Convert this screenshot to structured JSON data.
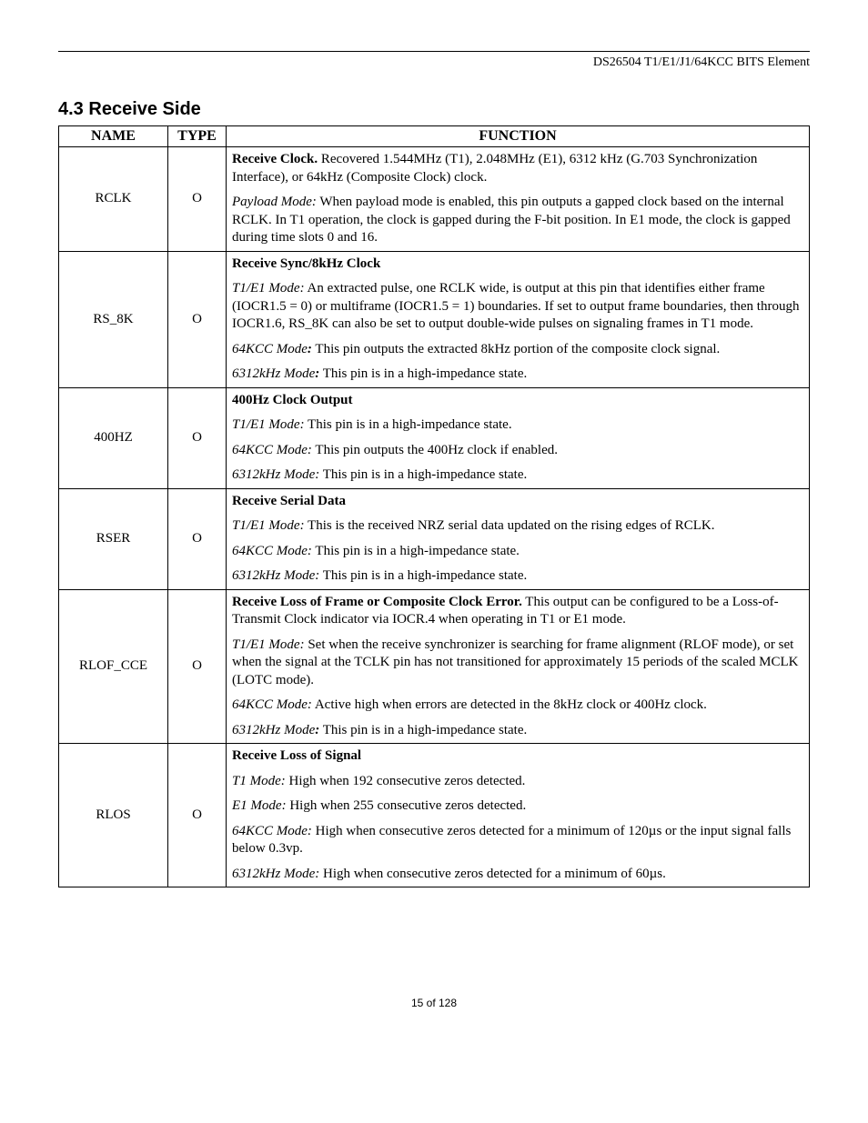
{
  "header": {
    "doc_title": "DS26504 T1/E1/J1/64KCC BITS Element"
  },
  "section": {
    "number": "4.3",
    "title": "Receive Side"
  },
  "table": {
    "headers": {
      "name": "NAME",
      "type": "TYPE",
      "function": "FUNCTION"
    },
    "rows": [
      {
        "name": "RCLK",
        "type": "O",
        "function": [
          [
            {
              "style": "b",
              "text": "Receive Clock."
            },
            {
              "style": "",
              "text": " Recovered 1.544MHz (T1), 2.048MHz (E1), 6312 kHz (G.703 Synchronization Interface), or 64kHz (Composite Clock) clock."
            }
          ],
          [
            {
              "style": "i",
              "text": "Payload Mode:"
            },
            {
              "style": "",
              "text": "  When payload mode is enabled, this pin outputs a gapped clock based on the internal RCLK.  In T1 operation, the clock is gapped during the F-bit position. In E1 mode, the clock is gapped during time slots 0 and 16."
            }
          ]
        ]
      },
      {
        "name": "RS_8K",
        "type": "O",
        "function": [
          [
            {
              "style": "b",
              "text": "Receive Sync/8kHz Clock"
            }
          ],
          [
            {
              "style": "i",
              "text": "T1/E1 Mode:"
            },
            {
              "style": "",
              "text": " An extracted pulse, one RCLK wide, is output at this pin that identifies either frame (IOCR1.5 = 0) or multiframe (IOCR1.5 = 1) boundaries. If set to output frame boundaries, then through IOCR1.6, RS_8K can also be set to output double-wide pulses on signaling frames in T1 mode."
            }
          ],
          [
            {
              "style": "i",
              "text": "64KCC Mode"
            },
            {
              "style": "bi",
              "text": ":"
            },
            {
              "style": "",
              "text": "  This pin outputs the extracted 8kHz portion of the composite clock signal."
            }
          ],
          [
            {
              "style": "i",
              "text": "6312kHz Mode"
            },
            {
              "style": "bi",
              "text": ":"
            },
            {
              "style": "",
              "text": " This pin is in a high-impedance state."
            }
          ]
        ]
      },
      {
        "name": "400HZ",
        "type": "O",
        "function": [
          [
            {
              "style": "b",
              "text": "400Hz Clock Output"
            }
          ],
          [
            {
              "style": "i",
              "text": "T1/E1 Mode:"
            },
            {
              "style": "",
              "text": "  This pin is in a high-impedance state."
            }
          ],
          [
            {
              "style": "i",
              "text": "64KCC Mode:"
            },
            {
              "style": "",
              "text": " This pin outputs the 400Hz clock if enabled."
            }
          ],
          [
            {
              "style": "i",
              "text": "6312kHz Mode:"
            },
            {
              "style": "",
              "text": " This pin is in a high-impedance state."
            }
          ]
        ]
      },
      {
        "name": "RSER",
        "type": "O",
        "function": [
          [
            {
              "style": "b",
              "text": "Receive Serial Data"
            }
          ],
          [
            {
              "style": "i",
              "text": "T1/E1 Mode:"
            },
            {
              "style": "",
              "text": " This is the received NRZ serial data updated on the rising edges of RCLK."
            }
          ],
          [
            {
              "style": "i",
              "text": "64KCC Mode:"
            },
            {
              "style": "",
              "text": " This pin is in a high-impedance state."
            }
          ],
          [
            {
              "style": "i",
              "text": "6312kHz Mode:"
            },
            {
              "style": "",
              "text": " This pin is in a high-impedance state."
            }
          ]
        ]
      },
      {
        "name": "RLOF_CCE",
        "type": "O",
        "function": [
          [
            {
              "style": "b",
              "text": "Receive Loss of Frame or Composite Clock Error."
            },
            {
              "style": "",
              "text": " This output can be configured to be a Loss-of-Transmit Clock indicator via IOCR.4 when operating in T1 or E1 mode."
            }
          ],
          [
            {
              "style": "i",
              "text": "T1/E1 Mode:"
            },
            {
              "style": "",
              "text": "  Set when the receive synchronizer is searching for frame alignment (RLOF mode), or set when the signal at the TCLK pin has not transitioned for approximately 15 periods of the scaled MCLK (LOTC mode)."
            }
          ],
          [
            {
              "style": "i",
              "text": "64KCC Mode:"
            },
            {
              "style": "",
              "text": "  Active high when errors are detected in the 8kHz clock or 400Hz clock."
            }
          ],
          [
            {
              "style": "i",
              "text": "6312kHz Mode"
            },
            {
              "style": "bi",
              "text": ":"
            },
            {
              "style": "",
              "text": " This pin is in a high-impedance state."
            }
          ]
        ]
      },
      {
        "name": "RLOS",
        "type": "O",
        "function": [
          [
            {
              "style": "b",
              "text": "Receive Loss of Signal"
            }
          ],
          [
            {
              "style": "i",
              "text": "T1 Mode:"
            },
            {
              "style": "",
              "text": "  High when 192 consecutive zeros detected."
            }
          ],
          [
            {
              "style": "i",
              "text": "E1 Mode:"
            },
            {
              "style": "",
              "text": "  High when 255 consecutive zeros detected."
            }
          ],
          [
            {
              "style": "i",
              "text": "64KCC Mode:"
            },
            {
              "style": "",
              "text": "  High when consecutive zeros detected for a minimum of 120µs or the input signal falls below 0.3vp."
            }
          ],
          [
            {
              "style": "i",
              "text": "6312kHz Mode:"
            },
            {
              "style": "",
              "text": " High when consecutive zeros detected for a minimum of 60µs."
            }
          ]
        ]
      }
    ]
  },
  "footer": {
    "page": "15 of 128"
  }
}
